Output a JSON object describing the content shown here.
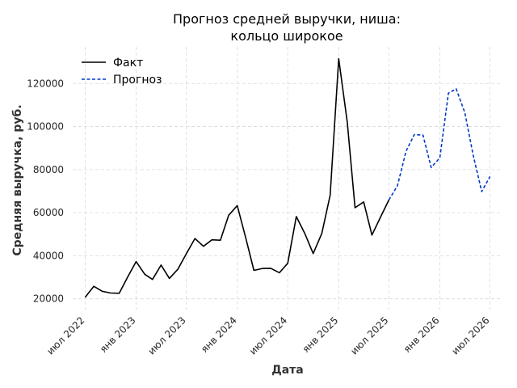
{
  "chart_data": {
    "type": "line",
    "title_lines": [
      "Прогноз средней выручки, ниша:",
      "кольцо широкое"
    ],
    "xlabel": "Дата",
    "ylabel": "Средняя выручка, руб.",
    "x_ticks": [
      {
        "date": "2022-07-01",
        "label": "июл 2022"
      },
      {
        "date": "2023-01-01",
        "label": "янв 2023"
      },
      {
        "date": "2023-07-01",
        "label": "июл 2023"
      },
      {
        "date": "2024-01-01",
        "label": "янв 2024"
      },
      {
        "date": "2024-07-01",
        "label": "июл 2024"
      },
      {
        "date": "2025-01-01",
        "label": "янв 2025"
      },
      {
        "date": "2025-07-01",
        "label": "июл 2025"
      },
      {
        "date": "2026-01-01",
        "label": "янв 2026"
      },
      {
        "date": "2026-07-01",
        "label": "июл 2026"
      }
    ],
    "y_ticks": [
      {
        "value": 20000,
        "label": "20000"
      },
      {
        "value": 40000,
        "label": "40000"
      },
      {
        "value": 60000,
        "label": "60000"
      },
      {
        "value": 80000,
        "label": "80000"
      },
      {
        "value": 100000,
        "label": "100000"
      },
      {
        "value": 120000,
        "label": "120000"
      }
    ],
    "xlim": [
      "2022-05-17",
      "2026-08-15"
    ],
    "ylim": [
      15000,
      137000
    ],
    "grid": true,
    "legend_position": "top-left",
    "series": [
      {
        "name": "Факт",
        "color": "#000000",
        "style": "solid",
        "points": [
          {
            "x": "2022-07-01",
            "y": 20700
          },
          {
            "x": "2022-08-01",
            "y": 25800
          },
          {
            "x": "2022-09-01",
            "y": 23500
          },
          {
            "x": "2022-10-01",
            "y": 22700
          },
          {
            "x": "2022-11-01",
            "y": 22600
          },
          {
            "x": "2022-12-01",
            "y": 30000
          },
          {
            "x": "2023-01-01",
            "y": 37300
          },
          {
            "x": "2023-02-01",
            "y": 31400
          },
          {
            "x": "2023-03-01",
            "y": 29000
          },
          {
            "x": "2023-04-01",
            "y": 35700
          },
          {
            "x": "2023-05-01",
            "y": 29500
          },
          {
            "x": "2023-06-01",
            "y": 33800
          },
          {
            "x": "2023-07-01",
            "y": 40900
          },
          {
            "x": "2023-08-01",
            "y": 48000
          },
          {
            "x": "2023-09-01",
            "y": 44400
          },
          {
            "x": "2023-10-01",
            "y": 47400
          },
          {
            "x": "2023-11-01",
            "y": 47200
          },
          {
            "x": "2023-12-01",
            "y": 58800
          },
          {
            "x": "2024-01-01",
            "y": 63300
          },
          {
            "x": "2024-02-01",
            "y": 48000
          },
          {
            "x": "2024-03-01",
            "y": 33200
          },
          {
            "x": "2024-04-01",
            "y": 34100
          },
          {
            "x": "2024-05-01",
            "y": 34200
          },
          {
            "x": "2024-06-01",
            "y": 32100
          },
          {
            "x": "2024-07-01",
            "y": 36500
          },
          {
            "x": "2024-08-01",
            "y": 58200
          },
          {
            "x": "2024-09-01",
            "y": 50300
          },
          {
            "x": "2024-10-01",
            "y": 41000
          },
          {
            "x": "2024-11-01",
            "y": 50400
          },
          {
            "x": "2024-12-01",
            "y": 68100
          },
          {
            "x": "2025-01-01",
            "y": 131500
          },
          {
            "x": "2025-02-01",
            "y": 102000
          },
          {
            "x": "2025-03-01",
            "y": 62300
          },
          {
            "x": "2025-04-01",
            "y": 65000
          },
          {
            "x": "2025-05-01",
            "y": 49600
          },
          {
            "x": "2025-06-01",
            "y": 58000
          },
          {
            "x": "2025-07-01",
            "y": 65900
          }
        ]
      },
      {
        "name": "Прогноз",
        "color": "#0039c8",
        "style": "dashed",
        "points": [
          {
            "x": "2025-07-01",
            "y": 65900
          },
          {
            "x": "2025-08-01",
            "y": 72500
          },
          {
            "x": "2025-09-01",
            "y": 88500
          },
          {
            "x": "2025-10-01",
            "y": 96300
          },
          {
            "x": "2025-11-01",
            "y": 96000
          },
          {
            "x": "2025-12-01",
            "y": 81000
          },
          {
            "x": "2026-01-01",
            "y": 85500
          },
          {
            "x": "2026-02-01",
            "y": 115500
          },
          {
            "x": "2026-03-01",
            "y": 117500
          },
          {
            "x": "2026-04-01",
            "y": 106500
          },
          {
            "x": "2026-05-01",
            "y": 87000
          },
          {
            "x": "2026-06-01",
            "y": 69800
          },
          {
            "x": "2026-07-01",
            "y": 76800
          }
        ]
      }
    ]
  }
}
